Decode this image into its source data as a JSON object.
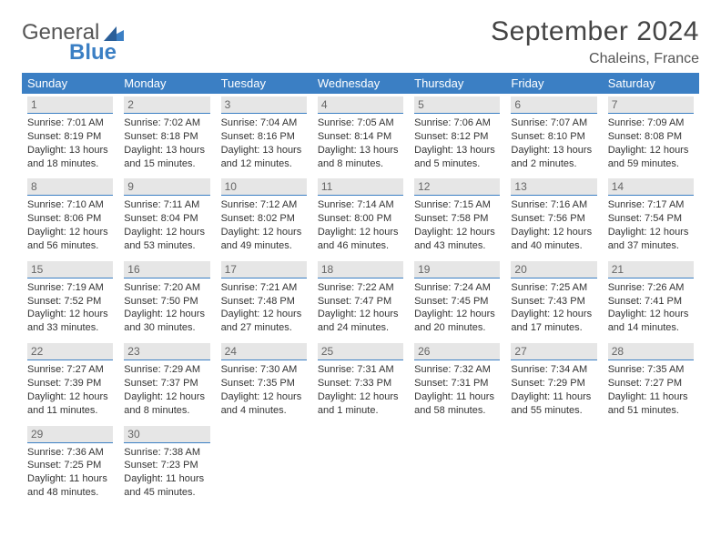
{
  "logo": {
    "general": "General",
    "blue": "Blue"
  },
  "title": "September 2024",
  "location": "Chaleins, France",
  "colors": {
    "header_bg": "#3b7fc4",
    "header_text": "#ffffff",
    "daynum_bg": "#e6e6e6",
    "daynum_text": "#666666",
    "cell_rule": "#3b7fc4",
    "body_text": "#333333",
    "logo_gray": "#555555",
    "logo_blue": "#3b7fc4"
  },
  "weekdays": [
    "Sunday",
    "Monday",
    "Tuesday",
    "Wednesday",
    "Thursday",
    "Friday",
    "Saturday"
  ],
  "weeks": [
    [
      {
        "n": "1",
        "sr": "Sunrise: 7:01 AM",
        "ss": "Sunset: 8:19 PM",
        "d1": "Daylight: 13 hours",
        "d2": "and 18 minutes."
      },
      {
        "n": "2",
        "sr": "Sunrise: 7:02 AM",
        "ss": "Sunset: 8:18 PM",
        "d1": "Daylight: 13 hours",
        "d2": "and 15 minutes."
      },
      {
        "n": "3",
        "sr": "Sunrise: 7:04 AM",
        "ss": "Sunset: 8:16 PM",
        "d1": "Daylight: 13 hours",
        "d2": "and 12 minutes."
      },
      {
        "n": "4",
        "sr": "Sunrise: 7:05 AM",
        "ss": "Sunset: 8:14 PM",
        "d1": "Daylight: 13 hours",
        "d2": "and 8 minutes."
      },
      {
        "n": "5",
        "sr": "Sunrise: 7:06 AM",
        "ss": "Sunset: 8:12 PM",
        "d1": "Daylight: 13 hours",
        "d2": "and 5 minutes."
      },
      {
        "n": "6",
        "sr": "Sunrise: 7:07 AM",
        "ss": "Sunset: 8:10 PM",
        "d1": "Daylight: 13 hours",
        "d2": "and 2 minutes."
      },
      {
        "n": "7",
        "sr": "Sunrise: 7:09 AM",
        "ss": "Sunset: 8:08 PM",
        "d1": "Daylight: 12 hours",
        "d2": "and 59 minutes."
      }
    ],
    [
      {
        "n": "8",
        "sr": "Sunrise: 7:10 AM",
        "ss": "Sunset: 8:06 PM",
        "d1": "Daylight: 12 hours",
        "d2": "and 56 minutes."
      },
      {
        "n": "9",
        "sr": "Sunrise: 7:11 AM",
        "ss": "Sunset: 8:04 PM",
        "d1": "Daylight: 12 hours",
        "d2": "and 53 minutes."
      },
      {
        "n": "10",
        "sr": "Sunrise: 7:12 AM",
        "ss": "Sunset: 8:02 PM",
        "d1": "Daylight: 12 hours",
        "d2": "and 49 minutes."
      },
      {
        "n": "11",
        "sr": "Sunrise: 7:14 AM",
        "ss": "Sunset: 8:00 PM",
        "d1": "Daylight: 12 hours",
        "d2": "and 46 minutes."
      },
      {
        "n": "12",
        "sr": "Sunrise: 7:15 AM",
        "ss": "Sunset: 7:58 PM",
        "d1": "Daylight: 12 hours",
        "d2": "and 43 minutes."
      },
      {
        "n": "13",
        "sr": "Sunrise: 7:16 AM",
        "ss": "Sunset: 7:56 PM",
        "d1": "Daylight: 12 hours",
        "d2": "and 40 minutes."
      },
      {
        "n": "14",
        "sr": "Sunrise: 7:17 AM",
        "ss": "Sunset: 7:54 PM",
        "d1": "Daylight: 12 hours",
        "d2": "and 37 minutes."
      }
    ],
    [
      {
        "n": "15",
        "sr": "Sunrise: 7:19 AM",
        "ss": "Sunset: 7:52 PM",
        "d1": "Daylight: 12 hours",
        "d2": "and 33 minutes."
      },
      {
        "n": "16",
        "sr": "Sunrise: 7:20 AM",
        "ss": "Sunset: 7:50 PM",
        "d1": "Daylight: 12 hours",
        "d2": "and 30 minutes."
      },
      {
        "n": "17",
        "sr": "Sunrise: 7:21 AM",
        "ss": "Sunset: 7:48 PM",
        "d1": "Daylight: 12 hours",
        "d2": "and 27 minutes."
      },
      {
        "n": "18",
        "sr": "Sunrise: 7:22 AM",
        "ss": "Sunset: 7:47 PM",
        "d1": "Daylight: 12 hours",
        "d2": "and 24 minutes."
      },
      {
        "n": "19",
        "sr": "Sunrise: 7:24 AM",
        "ss": "Sunset: 7:45 PM",
        "d1": "Daylight: 12 hours",
        "d2": "and 20 minutes."
      },
      {
        "n": "20",
        "sr": "Sunrise: 7:25 AM",
        "ss": "Sunset: 7:43 PM",
        "d1": "Daylight: 12 hours",
        "d2": "and 17 minutes."
      },
      {
        "n": "21",
        "sr": "Sunrise: 7:26 AM",
        "ss": "Sunset: 7:41 PM",
        "d1": "Daylight: 12 hours",
        "d2": "and 14 minutes."
      }
    ],
    [
      {
        "n": "22",
        "sr": "Sunrise: 7:27 AM",
        "ss": "Sunset: 7:39 PM",
        "d1": "Daylight: 12 hours",
        "d2": "and 11 minutes."
      },
      {
        "n": "23",
        "sr": "Sunrise: 7:29 AM",
        "ss": "Sunset: 7:37 PM",
        "d1": "Daylight: 12 hours",
        "d2": "and 8 minutes."
      },
      {
        "n": "24",
        "sr": "Sunrise: 7:30 AM",
        "ss": "Sunset: 7:35 PM",
        "d1": "Daylight: 12 hours",
        "d2": "and 4 minutes."
      },
      {
        "n": "25",
        "sr": "Sunrise: 7:31 AM",
        "ss": "Sunset: 7:33 PM",
        "d1": "Daylight: 12 hours",
        "d2": "and 1 minute."
      },
      {
        "n": "26",
        "sr": "Sunrise: 7:32 AM",
        "ss": "Sunset: 7:31 PM",
        "d1": "Daylight: 11 hours",
        "d2": "and 58 minutes."
      },
      {
        "n": "27",
        "sr": "Sunrise: 7:34 AM",
        "ss": "Sunset: 7:29 PM",
        "d1": "Daylight: 11 hours",
        "d2": "and 55 minutes."
      },
      {
        "n": "28",
        "sr": "Sunrise: 7:35 AM",
        "ss": "Sunset: 7:27 PM",
        "d1": "Daylight: 11 hours",
        "d2": "and 51 minutes."
      }
    ],
    [
      {
        "n": "29",
        "sr": "Sunrise: 7:36 AM",
        "ss": "Sunset: 7:25 PM",
        "d1": "Daylight: 11 hours",
        "d2": "and 48 minutes."
      },
      {
        "n": "30",
        "sr": "Sunrise: 7:38 AM",
        "ss": "Sunset: 7:23 PM",
        "d1": "Daylight: 11 hours",
        "d2": "and 45 minutes."
      },
      null,
      null,
      null,
      null,
      null
    ]
  ]
}
